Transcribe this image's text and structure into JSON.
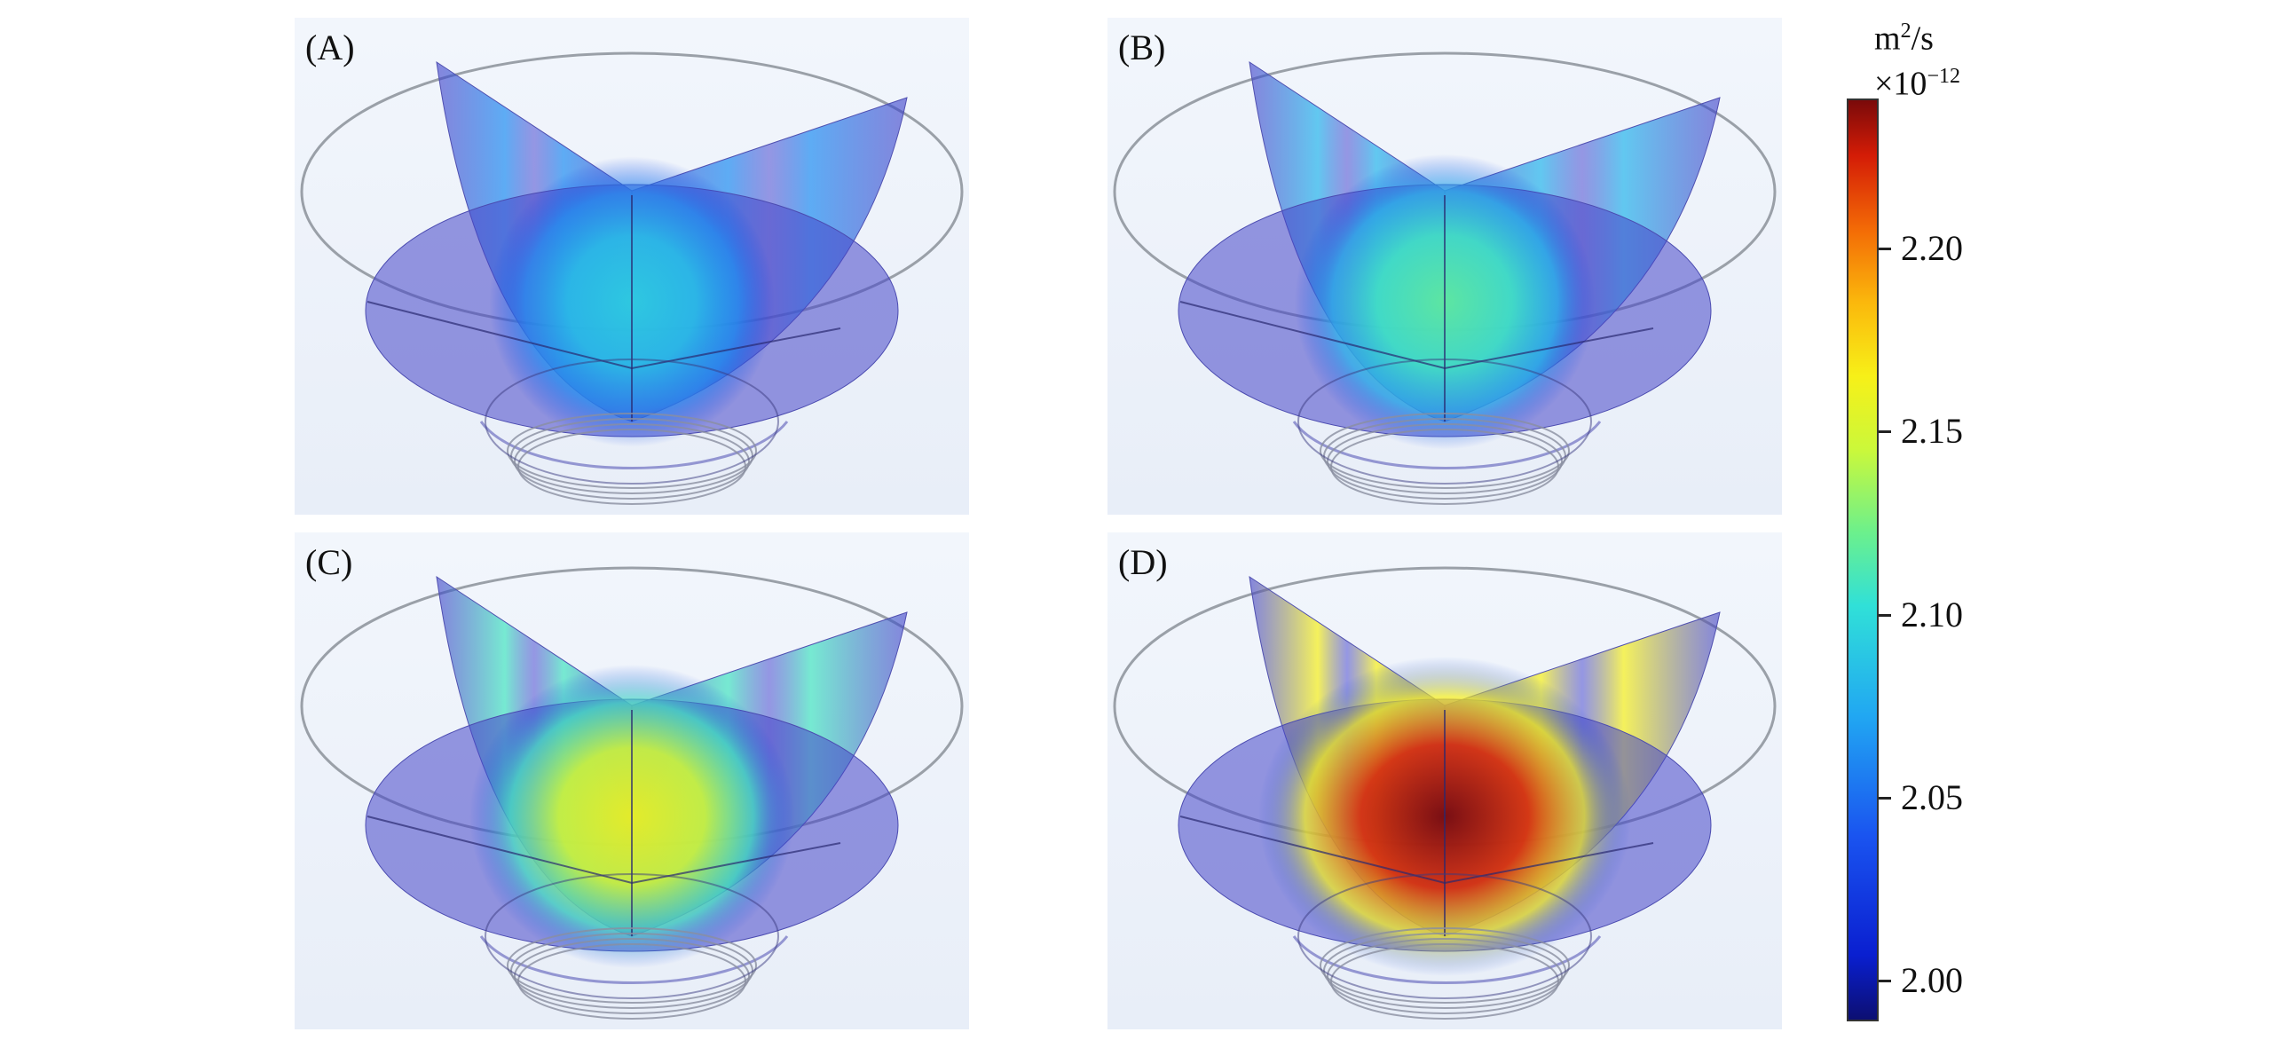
{
  "panels": [
    {
      "label": "(A)",
      "hot": 0.18
    },
    {
      "label": "(B)",
      "hot": 0.32
    },
    {
      "label": "(C)",
      "hot": 0.55
    },
    {
      "label": "(D)",
      "hot": 1.0
    }
  ],
  "colorbar": {
    "unit_main": "m",
    "unit_sup": "2",
    "unit_rest": "/s",
    "multiplier": "×10",
    "multiplier_exp": "−12",
    "ticks": [
      "2.20",
      "2.15",
      "2.10",
      "2.05",
      "2.00"
    ],
    "colors": {
      "low": "#0c0f72",
      "mid": "#30e0d8",
      "high": "#7a0a0a"
    }
  }
}
